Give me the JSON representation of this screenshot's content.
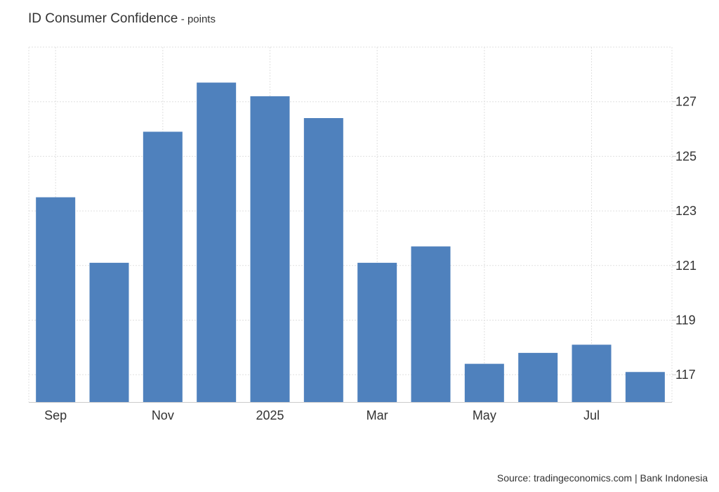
{
  "chart_data": {
    "type": "bar",
    "title": "ID Consumer Confidence",
    "subtitle": "- points",
    "series": [
      {
        "values": [
          123.5,
          121.1,
          125.9,
          127.7,
          127.2,
          126.4,
          121.1,
          121.7,
          117.4,
          117.8,
          118.1,
          117.1
        ]
      }
    ],
    "x_tick_labels": [
      "Sep",
      "Nov",
      "2025",
      "Mar",
      "May",
      "Jul"
    ],
    "x_tick_bar_index": [
      0,
      2,
      4,
      6,
      8,
      10
    ],
    "y_ticks": [
      117,
      119,
      121,
      123,
      125,
      127
    ],
    "ylim": [
      116,
      129
    ],
    "grid": true,
    "bar_color": "#4f81bd",
    "grid_color": "#e0e0e0"
  },
  "source": "Source: tradingeconomics.com | Bank Indonesia"
}
